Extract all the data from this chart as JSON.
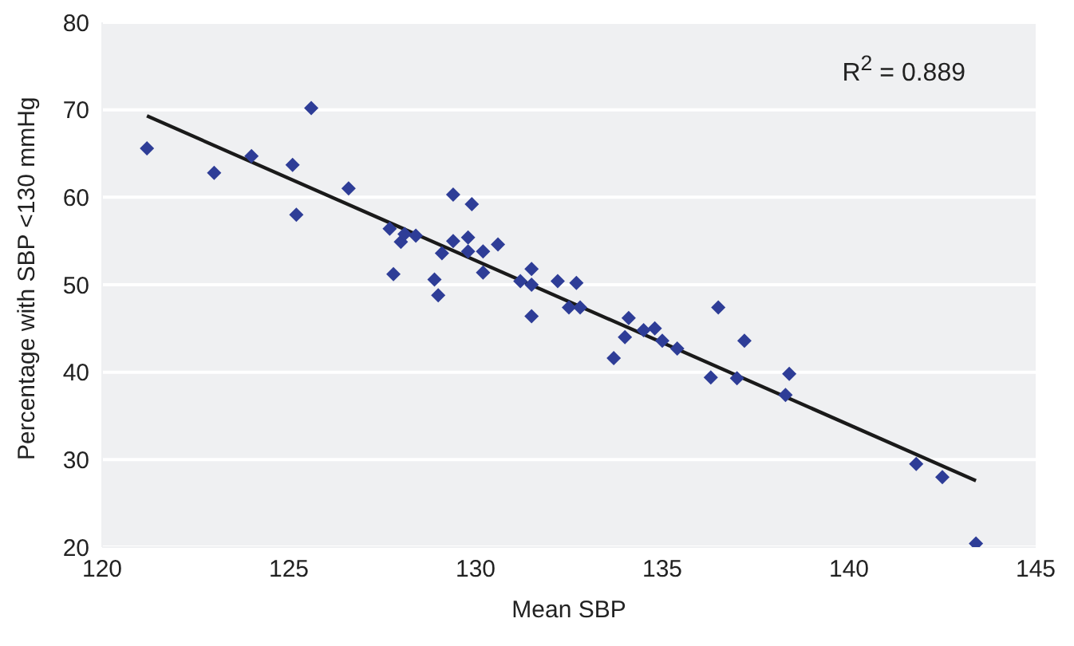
{
  "chart_data": {
    "type": "scatter",
    "xlabel": "Mean SBP",
    "ylabel": "Percentage with SBP <130 mmHg",
    "xlim": [
      120,
      145
    ],
    "xticks": [
      120,
      125,
      130,
      135,
      140,
      145
    ],
    "ylim": [
      20,
      80
    ],
    "yticks": [
      20,
      30,
      40,
      50,
      60,
      70,
      80
    ],
    "grid": "y",
    "annotations": [
      "R$^{2}$ = 0.889"
    ],
    "series": [
      {
        "color": "#2e3d97",
        "marker": "diamond",
        "x": [
          121.2,
          123.0,
          124.0,
          125.1,
          125.2,
          125.6,
          126.6,
          127.7,
          127.8,
          128.0,
          128.1,
          128.4,
          128.9,
          129.0,
          129.1,
          129.4,
          129.4,
          129.8,
          129.9,
          129.8,
          130.2,
          130.2,
          130.6,
          131.2,
          131.5,
          131.5,
          131.5,
          132.2,
          132.5,
          132.7,
          132.8,
          133.7,
          134.0,
          134.1,
          134.5,
          134.8,
          135.0,
          135.4,
          136.3,
          136.5,
          137.0,
          137.2,
          138.3,
          138.4,
          141.8,
          142.5,
          143.4
        ],
        "values": [
          65.6,
          62.8,
          64.7,
          63.7,
          58.0,
          70.2,
          61.0,
          56.4,
          51.2,
          54.9,
          55.8,
          55.6,
          50.6,
          48.8,
          53.6,
          60.3,
          55.0,
          55.4,
          59.2,
          53.8,
          53.8,
          51.4,
          54.6,
          50.4,
          51.8,
          46.4,
          50.0,
          50.4,
          47.4,
          50.2,
          47.4,
          41.6,
          44.0,
          46.2,
          44.8,
          45.0,
          43.6,
          42.7,
          39.4,
          47.4,
          39.3,
          43.6,
          37.4,
          39.8,
          29.5,
          28.0,
          20.4
        ]
      },
      {
        "type": "line",
        "color": "#1a1a1a",
        "marker": "none",
        "x": [
          121.2,
          143.4
        ],
        "values": [
          69.3,
          27.6
        ]
      }
    ]
  }
}
